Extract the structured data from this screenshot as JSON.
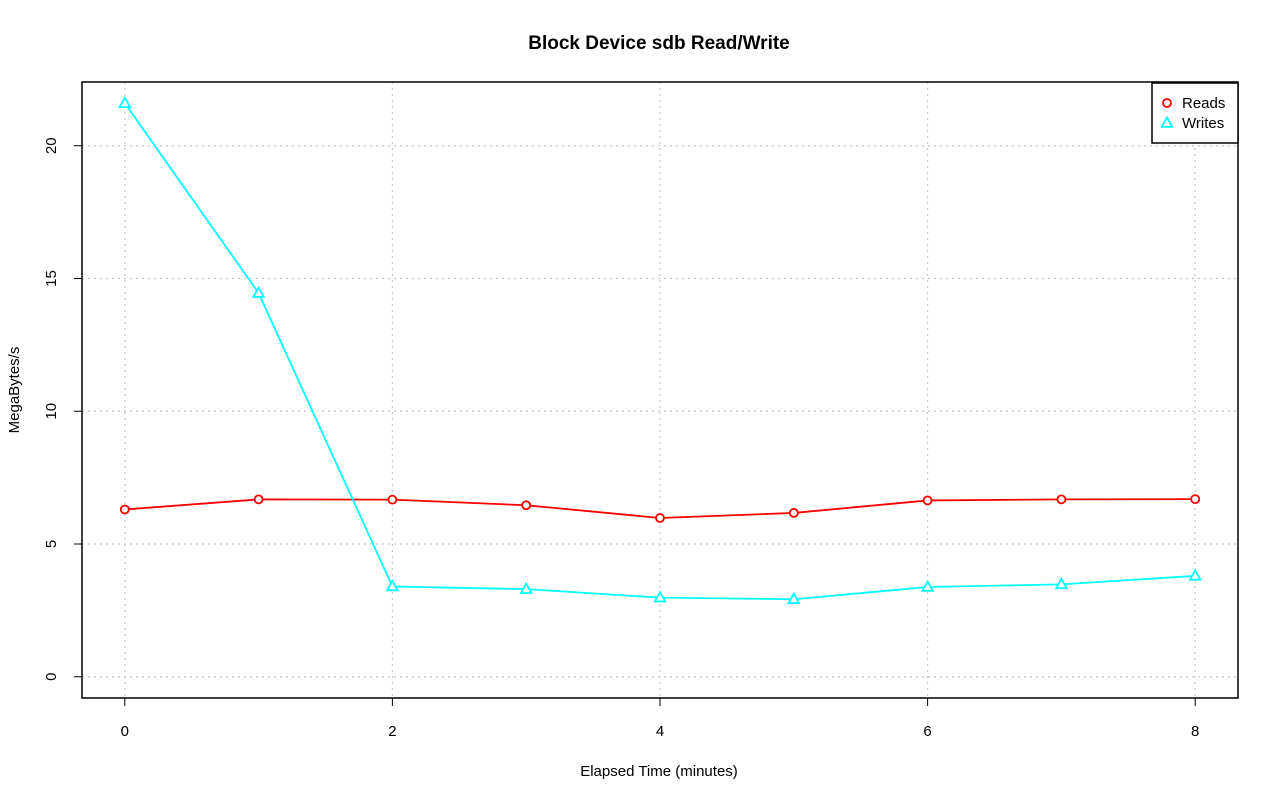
{
  "chart_data": {
    "type": "line",
    "title": "Block Device sdb Read/Write",
    "xlabel": "Elapsed Time (minutes)",
    "ylabel": "MegaBytes/s",
    "x": [
      0,
      1,
      2,
      3,
      4,
      5,
      6,
      7,
      8
    ],
    "xlim": [
      -0.32,
      8.32
    ],
    "ylim": [
      -0.8,
      22.4
    ],
    "xticks": [
      0,
      2,
      4,
      6,
      8
    ],
    "yticks": [
      0,
      5,
      10,
      15,
      20
    ],
    "xtick_labels": [
      "0",
      "2",
      "4",
      "6",
      "8"
    ],
    "ytick_labels": [
      "0",
      "5",
      "10",
      "15",
      "20"
    ],
    "grid": true,
    "legend_position": "top-right",
    "series": [
      {
        "name": "Reads",
        "color": "#ff0000",
        "marker": "circle",
        "values": [
          6.3,
          6.68,
          6.67,
          6.46,
          5.98,
          6.17,
          6.64,
          6.68,
          6.69
        ]
      },
      {
        "name": "Writes",
        "color": "#00ffff",
        "marker": "triangle",
        "values": [
          21.6,
          14.45,
          3.4,
          3.3,
          2.98,
          2.92,
          3.38,
          3.48,
          3.8
        ]
      }
    ]
  }
}
